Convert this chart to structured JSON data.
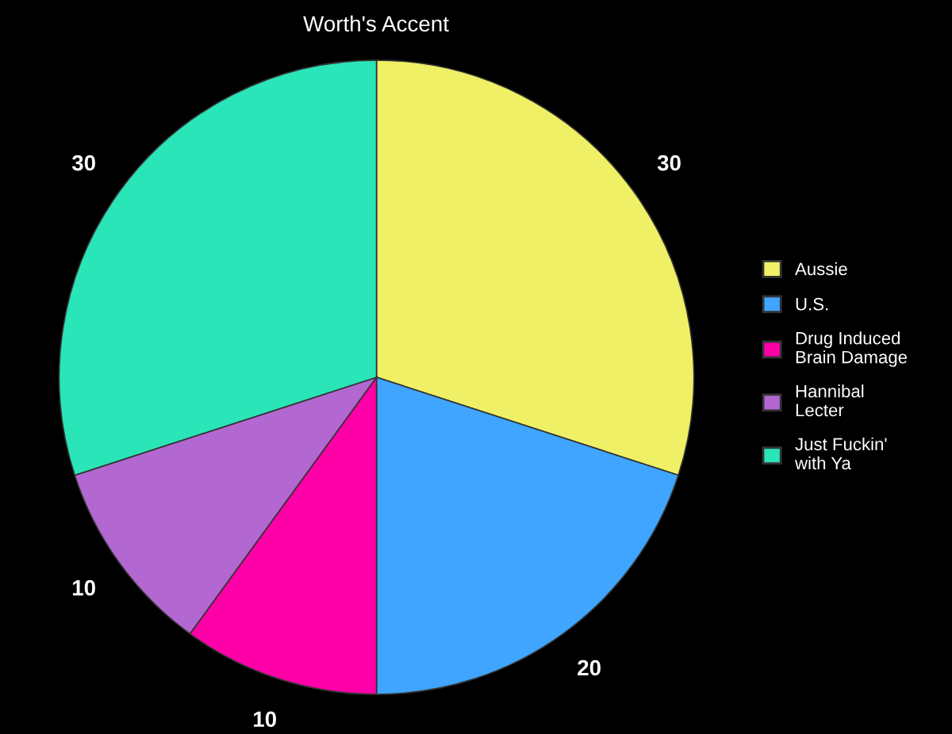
{
  "chart_data": {
    "type": "pie",
    "title": "Worth's Accent",
    "categories": [
      "Aussie",
      "U.S.",
      "Drug Induced\nBrain Damage",
      "Hannibal\nLecter",
      "Just Fuckin'\nwith Ya"
    ],
    "values": [
      30,
      20,
      10,
      10,
      30
    ],
    "colors": [
      "#f0f066",
      "#3fa5ff",
      "#ff00a8",
      "#b367d0",
      "#2ae5b8"
    ],
    "data_labels": true,
    "legend": "right"
  }
}
